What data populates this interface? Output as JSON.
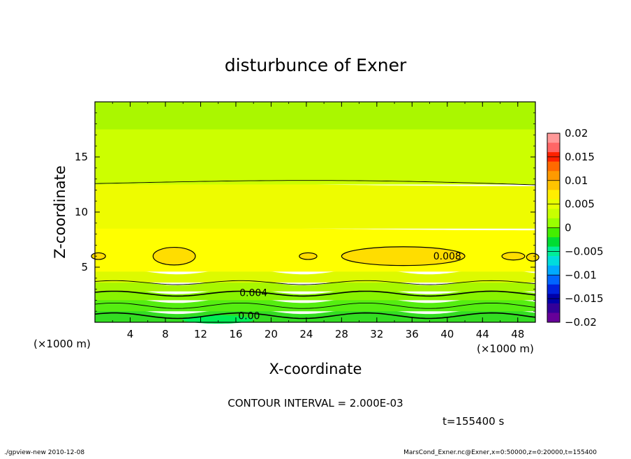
{
  "chart_data": {
    "type": "contour",
    "title": "disturbunce of Exner",
    "xlabel": "X-coordinate",
    "ylabel": "Z-coordinate",
    "x_unit": "(×1000 m)",
    "y_unit": "(×1000 m)",
    "xlim": [
      0,
      50
    ],
    "ylim": [
      0,
      20
    ],
    "xticks": [
      4,
      8,
      12,
      16,
      20,
      24,
      28,
      32,
      36,
      40,
      44,
      48
    ],
    "yticks": [
      5,
      10,
      15
    ],
    "contour_interval": "CONTOUR INTERVAL = 2.000E-03",
    "time_label": "t=155400 s",
    "contour_labels": [
      {
        "text": "0.008",
        "x": 40,
        "z": 6
      },
      {
        "text": "0.004",
        "x": 18,
        "z": 2.7
      },
      {
        "text": "0.00",
        "x": 17.5,
        "z": 0.6
      }
    ],
    "colorbar": {
      "levels": [
        "0.02",
        "0.015",
        "0.01",
        "0.005",
        "0",
        "−0.005",
        "−0.01",
        "−0.015",
        "−0.02"
      ],
      "colors": [
        "#ff9999",
        "#ff6666",
        "#ff2200",
        "#ff6a00",
        "#ff9a00",
        "#ffc400",
        "#ffee00",
        "#e6ff00",
        "#c8ff00",
        "#99ff00",
        "#44ee00",
        "#00dd33",
        "#00ee99",
        "#00dddd",
        "#00aaff",
        "#0066ff",
        "#0022dd",
        "#0000aa",
        "#330099",
        "#660099"
      ]
    },
    "bands": [
      {
        "z0": 0,
        "z1": 1.0,
        "color": "#33dd22"
      },
      {
        "z0": 1.0,
        "z1": 2.0,
        "color": "#55ee11"
      },
      {
        "z0": 2.0,
        "z1": 2.8,
        "color": "#88f300"
      },
      {
        "z0": 2.8,
        "z1": 3.6,
        "color": "#a8f700"
      },
      {
        "z0": 3.6,
        "z1": 4.6,
        "color": "#ddfa00"
      },
      {
        "z0": 4.6,
        "z1": 8.5,
        "color": "#ffff00"
      },
      {
        "z0": 8.5,
        "z1": 12.5,
        "color": "#eefc00"
      },
      {
        "z0": 12.5,
        "z1": 17.5,
        "color": "#ccff00"
      },
      {
        "z0": 17.5,
        "z1": 20,
        "color": "#aaf700"
      }
    ],
    "warm_blobs": [
      {
        "x": 9,
        "z": 6,
        "rx": 2.4,
        "rz": 0.8
      },
      {
        "x": 35,
        "z": 6,
        "rx": 7.0,
        "rz": 0.85
      },
      {
        "x": 24.2,
        "z": 6,
        "rx": 1.0,
        "rz": 0.3
      },
      {
        "x": 47.5,
        "z": 6,
        "rx": 1.3,
        "rz": 0.35
      },
      {
        "x": 0.4,
        "z": 6,
        "rx": 0.8,
        "rz": 0.3
      },
      {
        "x": 49.7,
        "z": 5.9,
        "rx": 0.7,
        "rz": 0.35
      }
    ],
    "colors": {
      "warm_blob": "#ffdd00",
      "green_patch": "#00ee55"
    }
  },
  "footer": {
    "left": "./gpview-new  2010-12-08",
    "right": "MarsCond_Exner.nc@Exner,x=0:50000,z=0:20000,t=155400"
  }
}
